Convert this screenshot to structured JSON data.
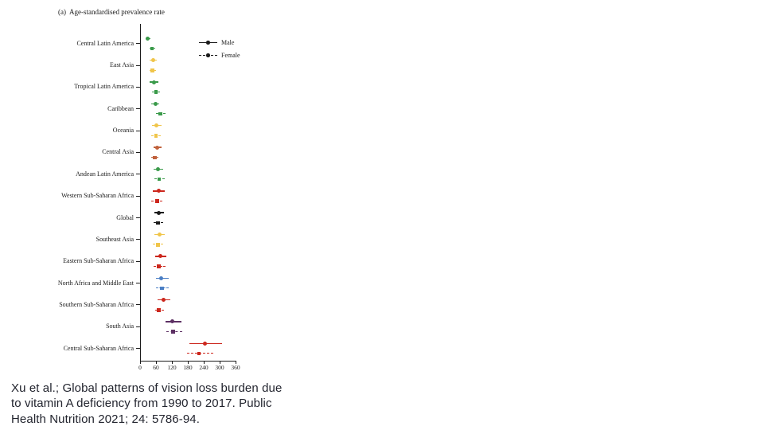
{
  "figure": {
    "title": "(a)  Age-standardised prevalence rate",
    "axis_color": "#1c1c1c",
    "legend": {
      "male_label": "Male",
      "female_label": "Female",
      "marker_color": "#1a1a1a"
    }
  },
  "chart_data": {
    "type": "scatter",
    "title": "(a) Age-standardised prevalence rate",
    "xlabel": "",
    "ylabel": "",
    "xlim": [
      0,
      360
    ],
    "x_ticks": [
      0,
      60,
      120,
      180,
      240,
      300,
      360
    ],
    "grid": false,
    "legend_position": "top-right-inside",
    "series_names": [
      "Male",
      "Female"
    ],
    "marker_styles": {
      "male": "filled-circle-solid-line",
      "female": "filled-square-dashed-line"
    },
    "regions": [
      {
        "label": "Central Latin America",
        "color": "#3a9a4a",
        "male": {
          "value": 29,
          "ci": [
            21,
            38
          ]
        },
        "female": {
          "value": 45,
          "ci": [
            36,
            56
          ]
        }
      },
      {
        "label": "East Asia",
        "color": "#f0c54a",
        "male": {
          "value": 50,
          "ci": [
            37,
            64
          ]
        },
        "female": {
          "value": 47,
          "ci": [
            35,
            60
          ]
        }
      },
      {
        "label": "Tropical Latin America",
        "color": "#3a9a4a",
        "male": {
          "value": 52,
          "ci": [
            37,
            68
          ]
        },
        "female": {
          "value": 60,
          "ci": [
            45,
            76
          ]
        }
      },
      {
        "label": "Caribbean",
        "color": "#3a9a4a",
        "male": {
          "value": 57,
          "ci": [
            43,
            72
          ]
        },
        "female": {
          "value": 77,
          "ci": [
            59,
            96
          ]
        }
      },
      {
        "label": "Oceania",
        "color": "#f0c54a",
        "male": {
          "value": 62,
          "ci": [
            44,
            81
          ]
        },
        "female": {
          "value": 60,
          "ci": [
            43,
            78
          ]
        }
      },
      {
        "label": "Central Asia",
        "color": "#c0613c",
        "male": {
          "value": 65,
          "ci": [
            50,
            82
          ]
        },
        "female": {
          "value": 55,
          "ci": [
            41,
            70
          ]
        }
      },
      {
        "label": "Andean Latin America",
        "color": "#3a9a4a",
        "male": {
          "value": 67,
          "ci": [
            51,
            86
          ]
        },
        "female": {
          "value": 72,
          "ci": [
            55,
            92
          ]
        }
      },
      {
        "label": "Western Sub-Saharan Africa",
        "color": "#cc271d",
        "male": {
          "value": 70,
          "ci": [
            49,
            93
          ]
        },
        "female": {
          "value": 64,
          "ci": [
            42,
            84
          ]
        }
      },
      {
        "label": "Global",
        "color": "#1a1a1a",
        "male": {
          "value": 70,
          "ci": [
            54,
            89
          ]
        },
        "female": {
          "value": 67,
          "ci": [
            51,
            86
          ]
        }
      },
      {
        "label": "Southeast Asia",
        "color": "#f0c54a",
        "male": {
          "value": 72,
          "ci": [
            54,
            92
          ]
        },
        "female": {
          "value": 67,
          "ci": [
            49,
            86
          ]
        }
      },
      {
        "label": "Eastern Sub-Saharan Africa",
        "color": "#cc271d",
        "male": {
          "value": 75,
          "ci": [
            57,
            98
          ]
        },
        "female": {
          "value": 70,
          "ci": [
            50,
            95
          ]
        }
      },
      {
        "label": "North Africa and Middle East",
        "color": "#4a7ec4",
        "male": {
          "value": 80,
          "ci": [
            60,
            107
          ]
        },
        "female": {
          "value": 82,
          "ci": [
            61,
            107
          ]
        }
      },
      {
        "label": "Southern Sub-Saharan Africa",
        "color": "#cc271d",
        "male": {
          "value": 87,
          "ci": [
            66,
            113
          ]
        },
        "female": {
          "value": 70,
          "ci": [
            57,
            89
          ]
        }
      },
      {
        "label": "South Asia",
        "color": "#5c2f63",
        "male": {
          "value": 122,
          "ci": [
            95,
            155
          ]
        },
        "female": {
          "value": 125,
          "ci": [
            100,
            158
          ]
        }
      },
      {
        "label": "Central Sub-Saharan Africa",
        "color": "#cc271d",
        "male": {
          "value": 245,
          "ci": [
            187,
            310
          ]
        },
        "female": {
          "value": 222,
          "ci": [
            176,
            275
          ]
        }
      }
    ]
  },
  "caption": {
    "lines": [
      "Xu et al.; Global patterns of vision loss burden due",
      "to vitamin A deficiency from 1990 to 2017. Public",
      "Health Nutrition 2021; 24: 5786-94."
    ]
  }
}
